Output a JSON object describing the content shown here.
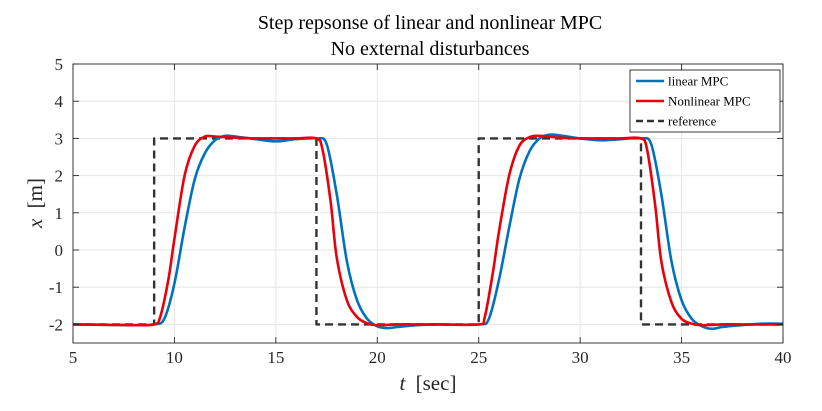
{
  "chart_data": {
    "type": "line",
    "title": [
      "Step repsonse of linear and nonlinear MPC",
      "No external disturbances"
    ],
    "xlabel": {
      "var": "t",
      "unit": "[sec]"
    },
    "ylabel": {
      "var": "x",
      "unit": "[m]"
    },
    "xlim": [
      5,
      40
    ],
    "ylim": [
      -2.5,
      5
    ],
    "xticks": [
      5,
      10,
      15,
      20,
      25,
      30,
      35,
      40
    ],
    "yticks": [
      -2,
      -1,
      0,
      1,
      2,
      3,
      4,
      5
    ],
    "xtick_labels": [
      "5",
      "10",
      "15",
      "20",
      "25",
      "30",
      "35",
      "40"
    ],
    "ytick_labels": [
      "-2",
      "-1",
      "0",
      "1",
      "2",
      "3",
      "4",
      "5"
    ],
    "grid": true,
    "legend_position": "top-right",
    "series": [
      {
        "name": "linear MPC",
        "color": "#0072BD",
        "style": "solid",
        "x": [
          5,
          8,
          9,
          9.5,
          10,
          10.5,
          11,
          11.5,
          12,
          12.5,
          13,
          14,
          15,
          16,
          17,
          17.5,
          18,
          18.5,
          19,
          19.5,
          20,
          20.5,
          21,
          22,
          23,
          25,
          25.5,
          26,
          26.5,
          27,
          27.5,
          28,
          28.5,
          29,
          30,
          31,
          32,
          33,
          33.5,
          34,
          34.5,
          35,
          35.5,
          36,
          36.5,
          37,
          38,
          39,
          40
        ],
        "values": [
          -2,
          -2.02,
          -2,
          -1.85,
          -0.9,
          0.6,
          1.9,
          2.6,
          2.95,
          3.07,
          3.05,
          2.98,
          2.92,
          2.98,
          3.0,
          2.85,
          1.5,
          -0.3,
          -1.35,
          -1.85,
          -2.05,
          -2.1,
          -2.07,
          -2.02,
          -2.0,
          -2.0,
          -1.85,
          -0.8,
          0.6,
          1.9,
          2.65,
          3.0,
          3.1,
          3.08,
          3.0,
          2.95,
          2.98,
          3.0,
          2.85,
          1.5,
          -0.3,
          -1.35,
          -1.85,
          -2.05,
          -2.12,
          -2.07,
          -2.02,
          -1.98,
          -1.98
        ]
      },
      {
        "name": "Nonlinear MPC",
        "color": "#E8000B",
        "style": "solid",
        "x": [
          5,
          8,
          9,
          9.3,
          9.7,
          10,
          10.5,
          11,
          11.5,
          12,
          13,
          14,
          15,
          16,
          17,
          17.3,
          17.7,
          18,
          18.5,
          19,
          19.5,
          20,
          21,
          22,
          23,
          25,
          25.3,
          25.7,
          26,
          26.5,
          27,
          27.5,
          28,
          29,
          30,
          31,
          32,
          33,
          33.3,
          33.7,
          34,
          34.5,
          35,
          35.5,
          36,
          37,
          38,
          39,
          40
        ],
        "values": [
          -2,
          -2.02,
          -2,
          -1.8,
          -0.8,
          0.3,
          2.0,
          2.8,
          3.05,
          3.05,
          3.02,
          3.0,
          3.0,
          3.0,
          3.0,
          2.7,
          1.3,
          -0.2,
          -1.35,
          -1.8,
          -1.97,
          -2.02,
          -2.0,
          -2.0,
          -2.0,
          -2.0,
          -1.8,
          -0.6,
          0.5,
          2.0,
          2.8,
          3.03,
          3.07,
          3.02,
          3.0,
          3.0,
          3.0,
          3.0,
          2.7,
          1.2,
          -0.3,
          -1.4,
          -1.85,
          -1.98,
          -2.02,
          -2.0,
          -2.0,
          -2.0,
          -2.0
        ]
      },
      {
        "name": "reference",
        "color": "#333333",
        "style": "dashed",
        "x": [
          5,
          9,
          9,
          17,
          17,
          25,
          25,
          33,
          33,
          40
        ],
        "values": [
          -2,
          -2,
          3,
          3,
          -2,
          -2,
          3,
          3,
          -2,
          -2
        ]
      }
    ]
  }
}
